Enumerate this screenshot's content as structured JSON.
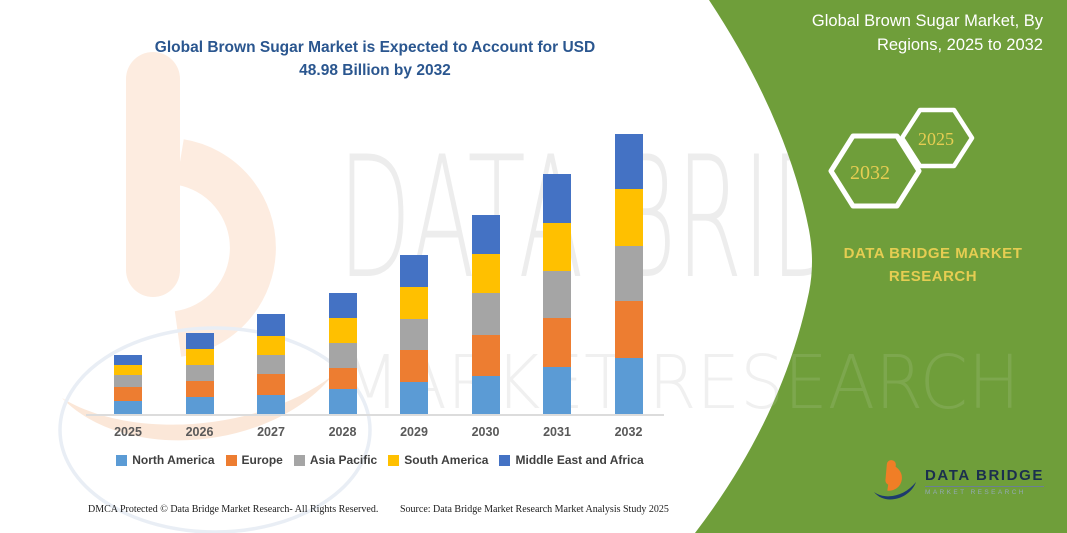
{
  "header": {
    "chart_title_lines": [
      "Global Brown Sugar Market is Expected to Account for USD",
      "48.98 Billion by 2032"
    ]
  },
  "panel": {
    "background_color": "#6f9e3a",
    "accent_yellow": "#e5cd52",
    "title_lines": [
      "Global Brown Sugar Market, By",
      "Regions, 2025 to 2032"
    ],
    "hexagons": [
      {
        "label": "2032"
      },
      {
        "label": "2025"
      }
    ],
    "brand_lines": [
      "DATA BRIDGE MARKET",
      "RESEARCH"
    ],
    "logo": {
      "name": "DATA BRIDGE",
      "subtitle": "MARKET RESEARCH"
    }
  },
  "watermark": {
    "line1": "DATA BRIDGE",
    "line2": "MARKET RESEARCH"
  },
  "chart_data": {
    "type": "bar",
    "stacked": true,
    "title": "Global Brown Sugar Market is Expected to Account for USD 48.98 Billion by 2032",
    "unit": "USD Billion",
    "categories": [
      "2025",
      "2026",
      "2027",
      "2028",
      "2029",
      "2030",
      "2031",
      "2032"
    ],
    "series": [
      {
        "name": "North America",
        "color": "#5B9BD5",
        "values": [
          2.2,
          3.0,
          3.4,
          4.3,
          5.6,
          6.7,
          8.3,
          9.8
        ]
      },
      {
        "name": "Europe",
        "color": "#ED7D31",
        "values": [
          2.6,
          2.8,
          3.6,
          3.8,
          5.6,
          7.2,
          8.5,
          9.9
        ]
      },
      {
        "name": "Asia Pacific",
        "color": "#A5A5A5",
        "values": [
          2.1,
          2.8,
          3.3,
          4.3,
          5.5,
          7.3,
          8.3,
          9.7
        ]
      },
      {
        "name": "South America",
        "color": "#FFC000",
        "values": [
          1.6,
          2.8,
          3.3,
          4.4,
          5.6,
          6.8,
          8.4,
          9.9
        ]
      },
      {
        "name": "Middle East and Africa",
        "color": "#4472C4",
        "values": [
          1.9,
          2.8,
          3.9,
          4.4,
          5.6,
          6.8,
          8.5,
          9.68
        ]
      }
    ],
    "totals": [
      10.4,
      14.2,
      17.5,
      21.2,
      27.9,
      34.8,
      42.0,
      48.98
    ],
    "ylim": [
      0,
      49
    ],
    "grid": false,
    "legend_position": "bottom",
    "xlabel": "",
    "ylabel": ""
  },
  "footer": {
    "dmca": "DMCA Protected © Data Bridge Market Research-  All Rights Reserved.",
    "source": "Source: Data Bridge Market Research  Market Analysis Study 2025"
  }
}
